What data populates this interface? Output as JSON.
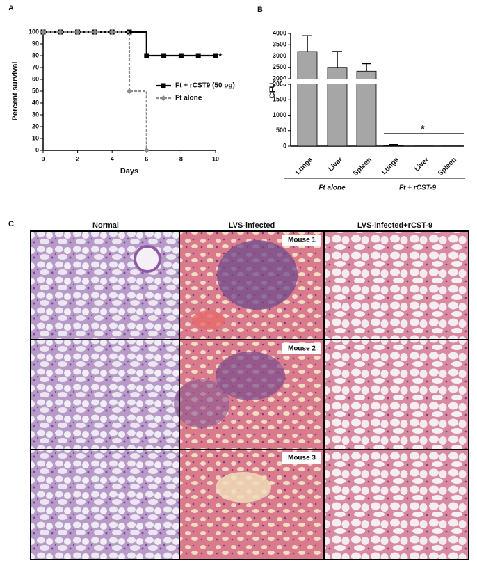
{
  "chart_data": [
    {
      "type": "line",
      "panel": "A",
      "xlabel": "Days",
      "ylabel": "Percent survival",
      "xlim": [
        0,
        10
      ],
      "xticks": [
        0,
        2,
        4,
        6,
        8,
        10
      ],
      "ylim": [
        0,
        100
      ],
      "yticks": [
        0,
        10,
        20,
        30,
        40,
        50,
        60,
        70,
        80,
        90,
        100
      ],
      "annotation": "*",
      "step": true,
      "series": [
        {
          "name": "Ft + rCST9 (50 pg)",
          "color": "#000000",
          "marker": "square",
          "dashed": false,
          "x": [
            0,
            1,
            2,
            3,
            4,
            5,
            6,
            7,
            8,
            9,
            10
          ],
          "values": [
            100,
            100,
            100,
            100,
            100,
            100,
            80,
            80,
            80,
            80,
            80
          ]
        },
        {
          "name": "Ft alone",
          "color": "#8c8c8c",
          "marker": "diamond",
          "dashed": true,
          "x": [
            0,
            1,
            2,
            3,
            4,
            5,
            6
          ],
          "values": [
            100,
            100,
            100,
            100,
            100,
            50,
            0
          ]
        }
      ]
    },
    {
      "type": "bar",
      "panel": "B",
      "ylabel": "CFU",
      "annotation": "*",
      "categories": [
        "Lungs",
        "Liver",
        "Spleen",
        "Lungs",
        "Liver",
        "Spleen"
      ],
      "values": [
        3200,
        2500,
        2330,
        30,
        5,
        5
      ],
      "errors": [
        700,
        700,
        330,
        20,
        0,
        0
      ],
      "colors": [
        "#a6a6a6",
        "#a6a6a6",
        "#a6a6a6",
        "#111111",
        "#111111",
        "#111111"
      ],
      "groups": [
        {
          "name": "Ft alone",
          "size": 3
        },
        {
          "name": "Ft + rCST-9",
          "size": 3
        }
      ],
      "ylim_lower": [
        0,
        2000
      ],
      "yticks_lower": [
        0,
        500,
        1000,
        1500,
        2000
      ],
      "ylim_upper": [
        2000,
        4000
      ],
      "yticks_upper": [
        2000,
        2500,
        3000,
        3500,
        4000
      ]
    }
  ],
  "panel_c": {
    "label": "C",
    "columns": [
      "Normal",
      "LVS-infected",
      "LVS-infected+rCST-9"
    ],
    "rows": [
      "Mouse 1",
      "Mouse 2",
      "Mouse 3"
    ]
  }
}
